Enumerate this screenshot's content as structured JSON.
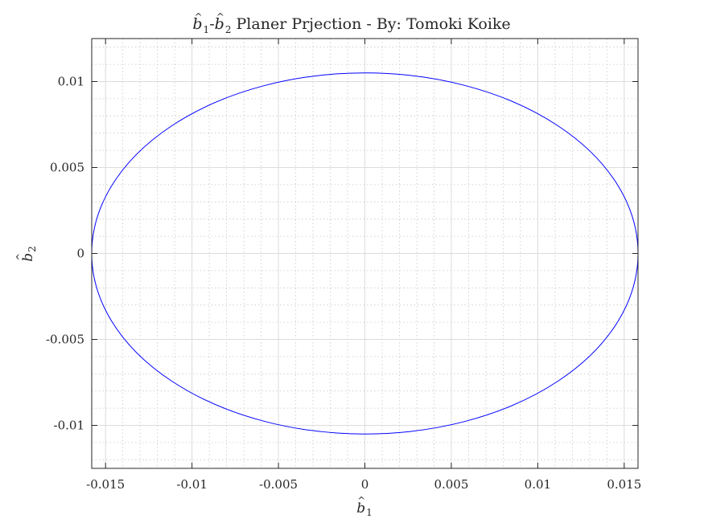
{
  "chart_data": {
    "type": "line",
    "title": {
      "sym1": "b",
      "hat1": "^",
      "sub1": "1",
      "dash": "-",
      "sym2": "b",
      "hat2": "^",
      "sub2": "2",
      "rest": " Planer Prjection - By: Tomoki Koike"
    },
    "xlabel": {
      "sym": "b",
      "hat": "^",
      "sub": "1"
    },
    "ylabel": {
      "sym": "b",
      "hat": "^",
      "sub": "2"
    },
    "xlim": [
      -0.0158,
      0.0158
    ],
    "ylim": [
      -0.0125,
      0.0125
    ],
    "x_ticks": [
      -0.015,
      -0.01,
      -0.005,
      0,
      0.005,
      0.01,
      0.015
    ],
    "x_tick_labels": [
      "-0.015",
      "-0.01",
      "-0.005",
      "0",
      "0.005",
      "0.01",
      "0.015"
    ],
    "y_ticks": [
      -0.01,
      -0.005,
      0,
      0.005,
      0.01
    ],
    "y_tick_labels": [
      "-0.01",
      "-0.005",
      "0",
      "0.005",
      "0.01"
    ],
    "grid": true,
    "minor_grid": true,
    "series": [
      {
        "shape": "ellipse",
        "center": [
          0,
          0
        ],
        "semi_axis_x": 0.0158,
        "semi_axis_y": 0.0105,
        "color": "#0000ff"
      }
    ]
  }
}
